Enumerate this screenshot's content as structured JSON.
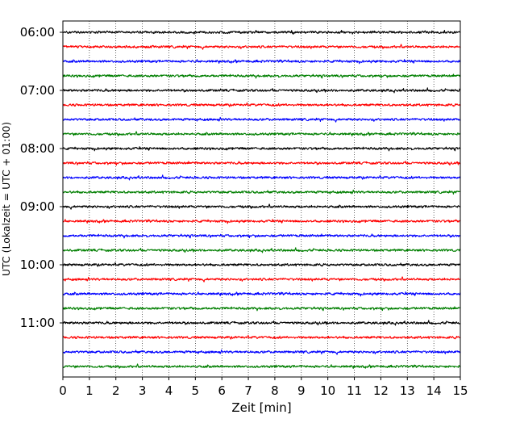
{
  "chart_data": {
    "type": "line",
    "title": "",
    "xlabel": "Zeit  [min]",
    "ylabel": "UTC (Lokalzeit = UTC + 01:00)",
    "xlim": [
      0,
      15
    ],
    "x_ticks": [
      0,
      1,
      2,
      3,
      4,
      5,
      6,
      7,
      8,
      9,
      10,
      11,
      12,
      13,
      14,
      15
    ],
    "grid": "vertical dotted",
    "legend": "none",
    "row_interval_minutes": 15,
    "rows": [
      "06:00",
      "06:15",
      "06:30",
      "06:45",
      "07:00",
      "07:15",
      "07:30",
      "07:45",
      "08:00",
      "08:15",
      "08:30",
      "08:45",
      "09:00",
      "09:15",
      "09:30",
      "09:45",
      "10:00",
      "10:15",
      "10:30",
      "10:45",
      "11:00",
      "11:15",
      "11:30",
      "11:45"
    ],
    "y_tick_labels": [
      "06:00",
      "07:00",
      "08:00",
      "09:00",
      "10:00",
      "11:00"
    ],
    "trace_colors": [
      "#000000",
      "#ff0000",
      "#0000ff",
      "#007f00"
    ]
  }
}
